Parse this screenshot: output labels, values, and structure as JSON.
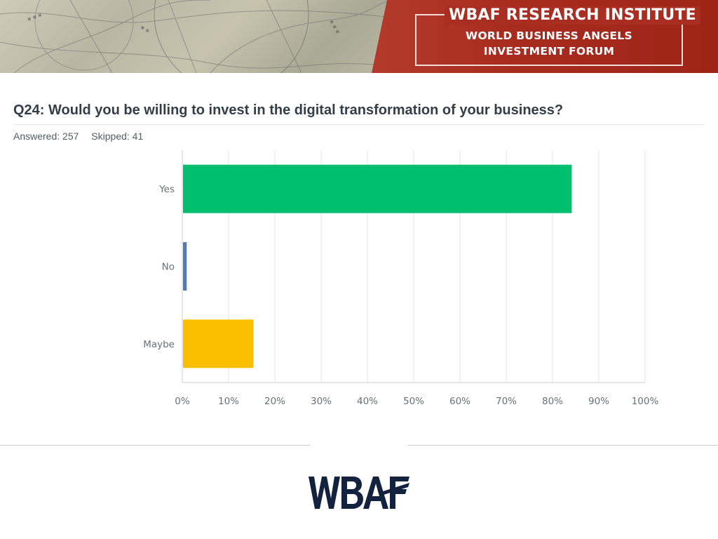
{
  "header": {
    "title": "WBAF RESEARCH INSTITUTE",
    "subtitle_line1": "WORLD BUSINESS ANGELS",
    "subtitle_line2": "INVESTMENT FORUM"
  },
  "question": {
    "text": "Q24: Would you be willing to invest in the digital transformation of your business?",
    "answered": "Answered: 257",
    "skipped": "Skipped: 41"
  },
  "colors": {
    "yes": "#00bf6f",
    "no": "#507cb6",
    "maybe": "#f9be00",
    "grid": "#e3e3e3",
    "axis": "#cfcfcf",
    "brand_red": "#a92b20",
    "logo_navy": "#13233f"
  },
  "chart_data": {
    "type": "bar",
    "orientation": "horizontal",
    "categories": [
      "Yes",
      "No",
      "Maybe"
    ],
    "values": [
      84,
      0.8,
      15.2
    ],
    "x_ticks": [
      "0%",
      "10%",
      "20%",
      "30%",
      "40%",
      "50%",
      "60%",
      "70%",
      "80%",
      "90%",
      "100%"
    ],
    "xlim": [
      0,
      100
    ],
    "grid": true
  },
  "footer": {
    "logo_text": "WBAF"
  }
}
